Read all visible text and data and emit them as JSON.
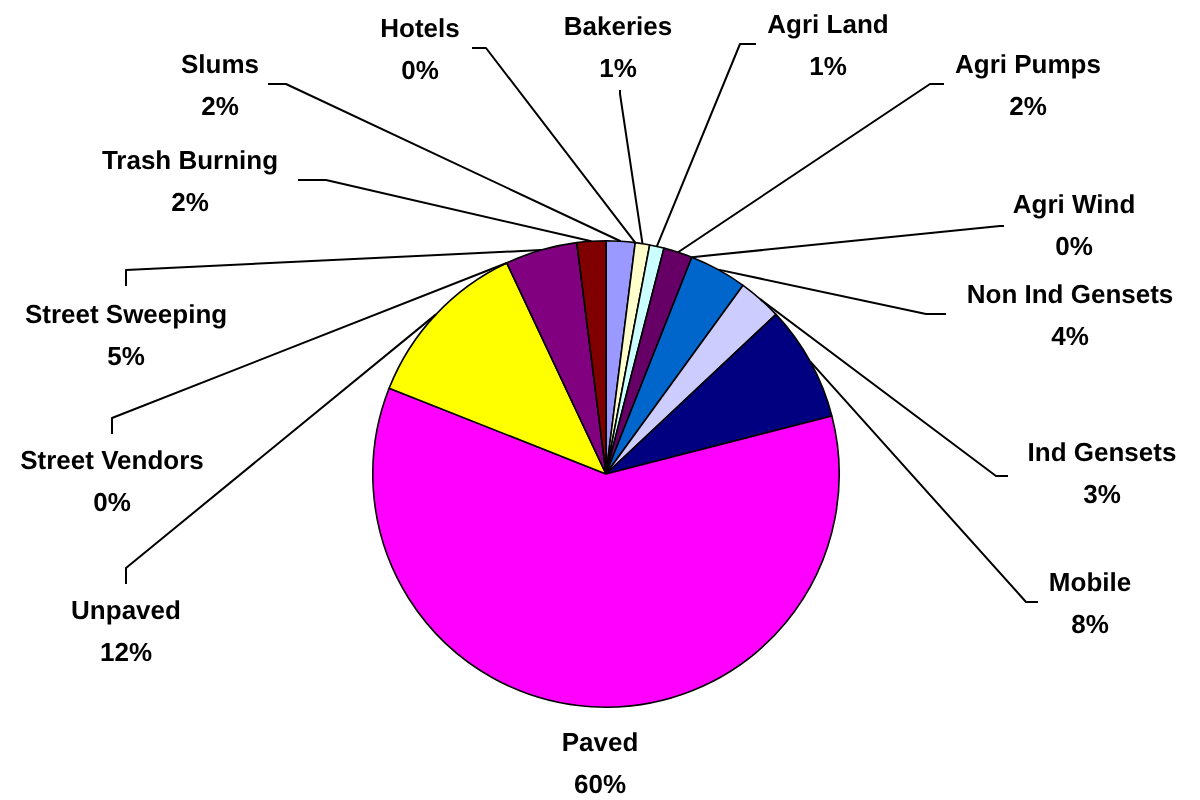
{
  "chart_data": {
    "type": "pie",
    "categories": [
      "Slums",
      "Hotels",
      "Bakeries",
      "Agri Land",
      "Agri Pumps",
      "Agri Wind",
      "Non Ind Gensets",
      "Ind Gensets",
      "Mobile",
      "Paved",
      "Unpaved",
      "Street Vendors",
      "Street Sweeping",
      "Trash Burning"
    ],
    "values": [
      2,
      0,
      1,
      1,
      2,
      0,
      4,
      3,
      8,
      60,
      12,
      0,
      5,
      2
    ],
    "colors": [
      "#9999ff",
      "#993366",
      "#ffffcc",
      "#ccffff",
      "#660066",
      "#ff8080",
      "#0066cc",
      "#ccccff",
      "#000080",
      "#ff00ff",
      "#ffff00",
      "#00ffff",
      "#800080",
      "#800000"
    ],
    "value_labels": [
      "2%",
      "0%",
      "1%",
      "1%",
      "2%",
      "0%",
      "4%",
      "3%",
      "8%",
      "60%",
      "12%",
      "0%",
      "5%",
      "2%"
    ]
  }
}
